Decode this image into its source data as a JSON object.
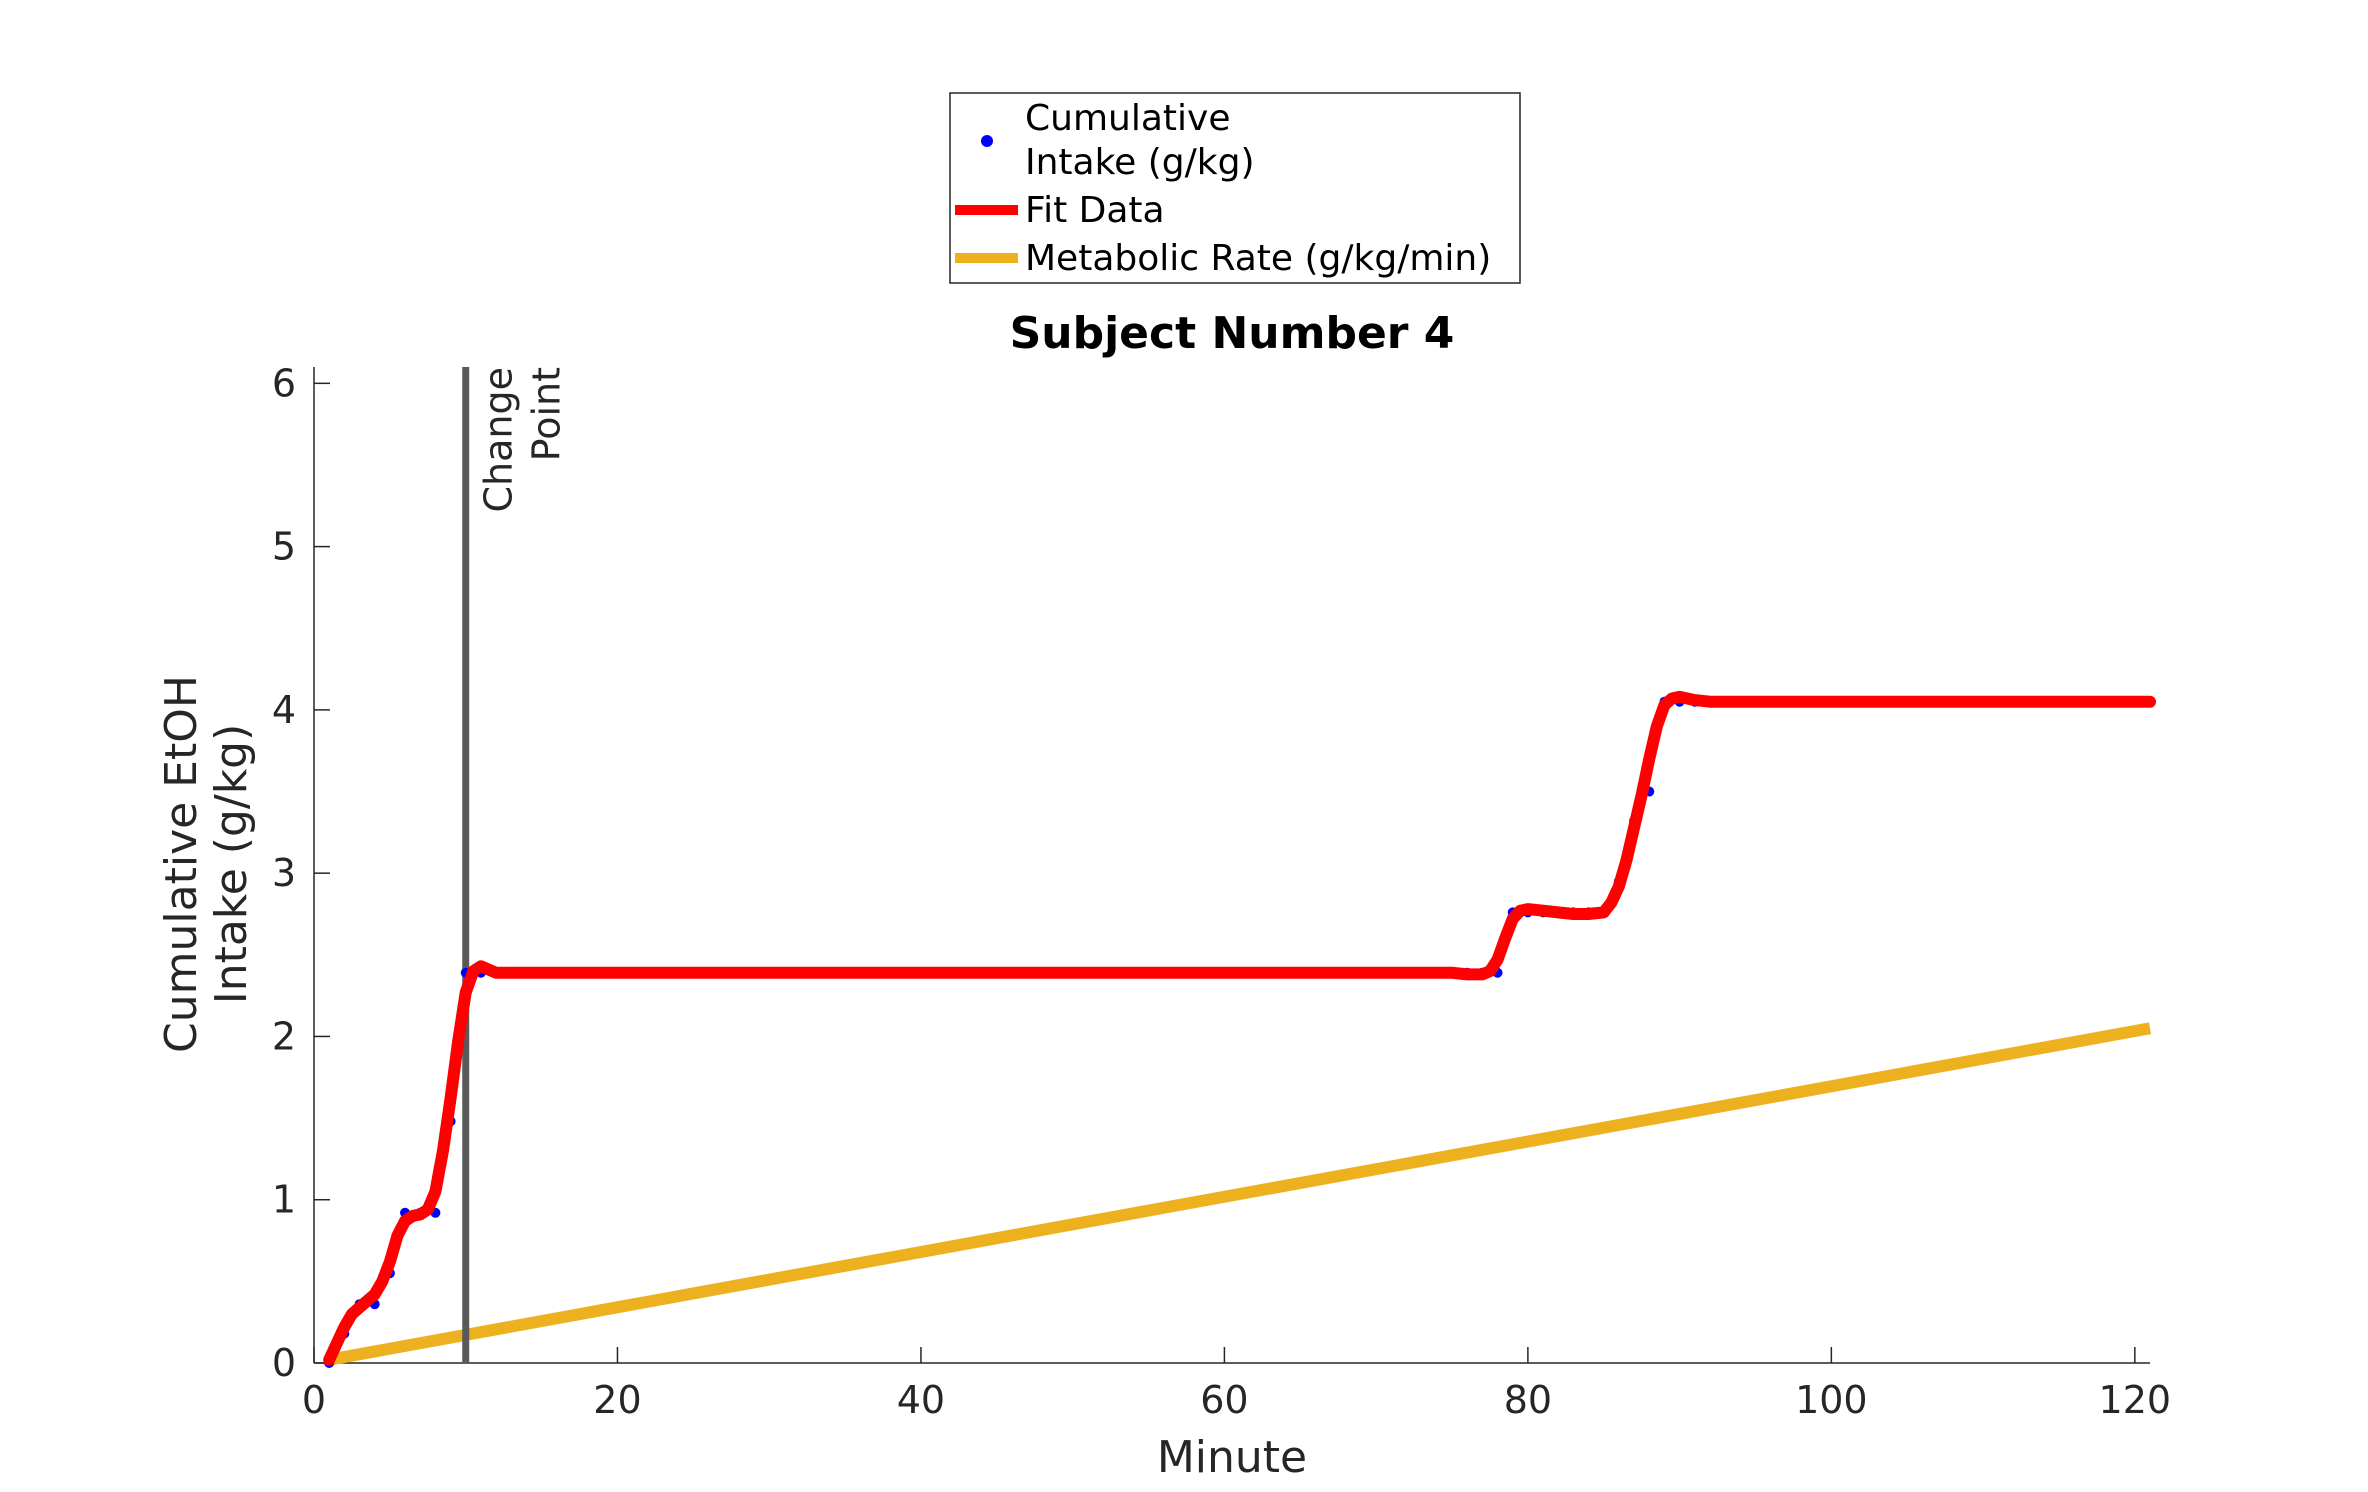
{
  "chart_data": {
    "type": "line",
    "title": "Subject Number 4",
    "xlabel": "Minute",
    "ylabel_lines": [
      "Cumulative EtOH",
      "Intake (g/kg)"
    ],
    "xlim": [
      0,
      121
    ],
    "ylim": [
      0,
      6.1
    ],
    "xticks": [
      0,
      20,
      40,
      60,
      80,
      100,
      120
    ],
    "yticks": [
      0,
      1,
      2,
      3,
      4,
      5,
      6
    ],
    "grid": false,
    "legend_position": "top-center",
    "legend": [
      {
        "label_lines": [
          "Cumulative",
          "Intake (g/kg)"
        ],
        "marker": "dot",
        "color": "#0000ff"
      },
      {
        "label_lines": [
          "Fit Data"
        ],
        "marker": "line",
        "color": "#ff0000"
      },
      {
        "label_lines": [
          "Metabolic Rate (g/kg/min)"
        ],
        "marker": "line",
        "color": "#edb120"
      }
    ],
    "series": [
      {
        "name": "Cumulative Intake (g/kg)",
        "style": "dots",
        "color": "#0000ff",
        "x": [
          1,
          2,
          3,
          4,
          5,
          6,
          7,
          8,
          9,
          10,
          11,
          12,
          13,
          14,
          15,
          20,
          25,
          30,
          35,
          40,
          45,
          50,
          55,
          60,
          65,
          70,
          75,
          76,
          77,
          78,
          79,
          80,
          81,
          82,
          83,
          84,
          85,
          86,
          87,
          88,
          89,
          90,
          91,
          92,
          93,
          94,
          95,
          100,
          105,
          110,
          115,
          120,
          121
        ],
        "y": [
          0,
          0.18,
          0.36,
          0.36,
          0.55,
          0.92,
          0.92,
          0.92,
          1.48,
          2.39,
          2.39,
          2.39,
          2.39,
          2.39,
          2.39,
          2.39,
          2.39,
          2.39,
          2.39,
          2.39,
          2.39,
          2.39,
          2.39,
          2.39,
          2.39,
          2.39,
          2.39,
          2.39,
          2.39,
          2.39,
          2.76,
          2.76,
          2.76,
          2.76,
          2.76,
          2.76,
          2.76,
          2.95,
          3.32,
          3.5,
          4.05,
          4.05,
          4.05,
          4.05,
          4.05,
          4.05,
          4.05,
          4.05,
          4.05,
          4.05,
          4.05,
          4.05,
          4.05
        ]
      },
      {
        "name": "Fit Data",
        "style": "line",
        "color": "#ff0000",
        "x": [
          1,
          1.5,
          2,
          2.5,
          3,
          3.5,
          4,
          4.5,
          5,
          5.5,
          6,
          6.5,
          7,
          7.5,
          8,
          8.5,
          9,
          9.5,
          10,
          10.5,
          11,
          11.5,
          12,
          13,
          14,
          20,
          40,
          60,
          70,
          75,
          76,
          77,
          77.5,
          78,
          78.5,
          79,
          79.5,
          80,
          81,
          82,
          83,
          84,
          85,
          85.5,
          86,
          86.5,
          87,
          87.5,
          88,
          88.5,
          89,
          89.5,
          90,
          90.5,
          91,
          92,
          95,
          100,
          110,
          121
        ],
        "y": [
          0.02,
          0.12,
          0.22,
          0.3,
          0.34,
          0.38,
          0.42,
          0.5,
          0.62,
          0.78,
          0.87,
          0.9,
          0.91,
          0.94,
          1.05,
          1.3,
          1.62,
          1.97,
          2.27,
          2.4,
          2.43,
          2.41,
          2.39,
          2.39,
          2.39,
          2.39,
          2.39,
          2.39,
          2.39,
          2.39,
          2.38,
          2.38,
          2.4,
          2.47,
          2.6,
          2.72,
          2.77,
          2.78,
          2.77,
          2.76,
          2.75,
          2.75,
          2.76,
          2.82,
          2.92,
          3.08,
          3.28,
          3.48,
          3.7,
          3.9,
          4.03,
          4.07,
          4.08,
          4.07,
          4.06,
          4.05,
          4.05,
          4.05,
          4.05,
          4.05
        ]
      },
      {
        "name": "Metabolic Rate (g/kg/min)",
        "style": "line",
        "color": "#edb120",
        "x": [
          1,
          121
        ],
        "y": [
          0.02,
          2.05
        ]
      }
    ],
    "change_point": {
      "x": 10,
      "label_lines": [
        "Change",
        "Point"
      ],
      "color": "#595959"
    }
  }
}
